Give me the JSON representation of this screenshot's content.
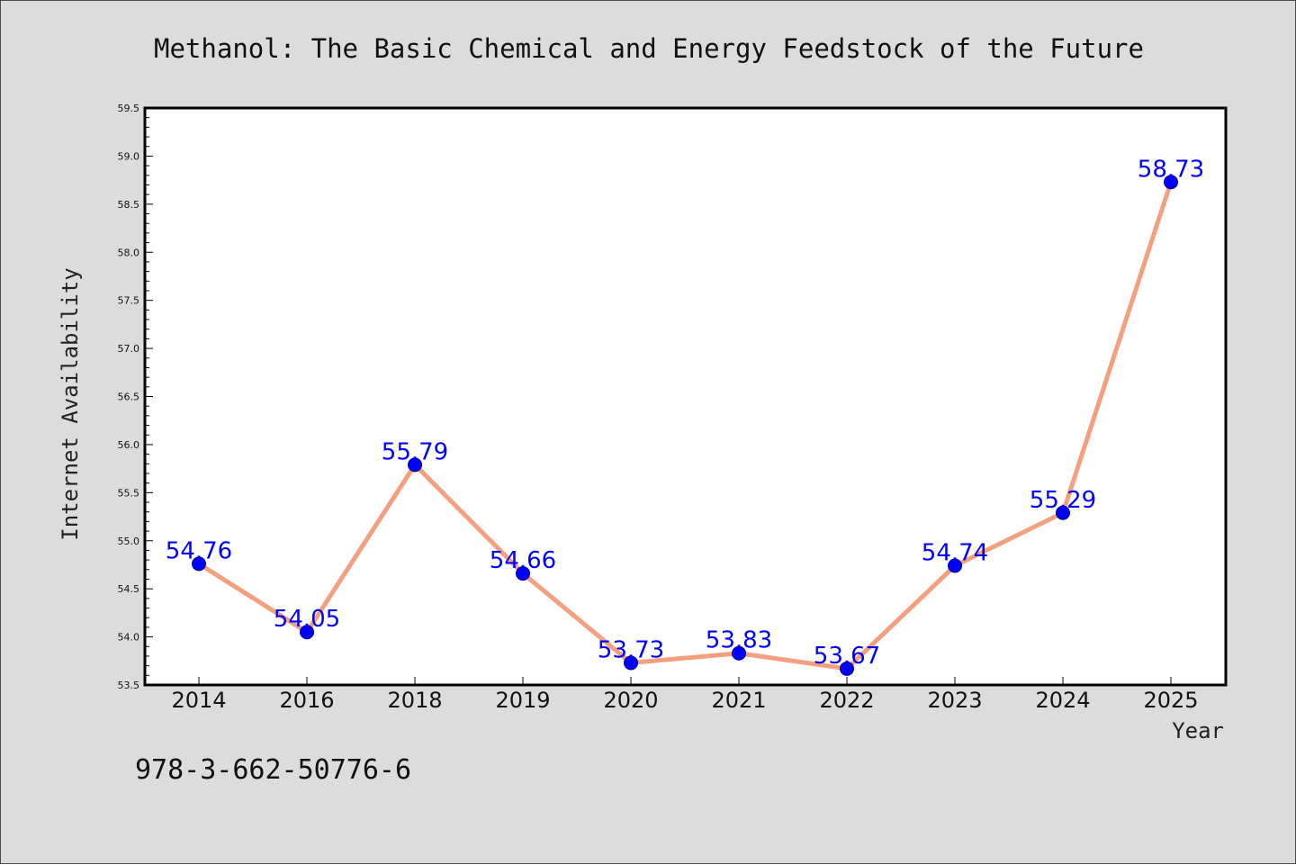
{
  "chart_data": {
    "type": "line",
    "title": "Methanol: The Basic Chemical and Energy Feedstock of the Future",
    "xlabel": "Year",
    "ylabel": "Internet Availability",
    "categories": [
      "2014",
      "2016",
      "2018",
      "2019",
      "2020",
      "2021",
      "2022",
      "2023",
      "2024",
      "2025"
    ],
    "series": [
      {
        "values": [
          54.76,
          54.05,
          55.79,
          54.66,
          53.73,
          53.83,
          53.67,
          54.74,
          55.29,
          58.73
        ],
        "data_labels": [
          "54.76",
          "54.05",
          "55.79",
          "54.66",
          "53.73",
          "53.83",
          "53.67",
          "54.74",
          "55.29",
          "58.73"
        ],
        "line_color": "#f4a07e",
        "marker_color": "#0000ff"
      }
    ],
    "ylim": [
      53.5,
      59.5
    ],
    "yticks": [
      "53.5",
      "54.0",
      "54.5",
      "55.0",
      "55.5",
      "56.0",
      "56.5",
      "57.0",
      "57.5",
      "58.0",
      "58.5",
      "59.0",
      "59.5"
    ],
    "grid": false,
    "legend": "none"
  },
  "footer": {
    "isbn": "978-3-662-50776-6"
  },
  "colors": {
    "background": "#dcdcdc",
    "plot_area": "#ffffff",
    "line": "#f4a07e",
    "marker": "#0000ff",
    "data_label": "#0000ff"
  }
}
